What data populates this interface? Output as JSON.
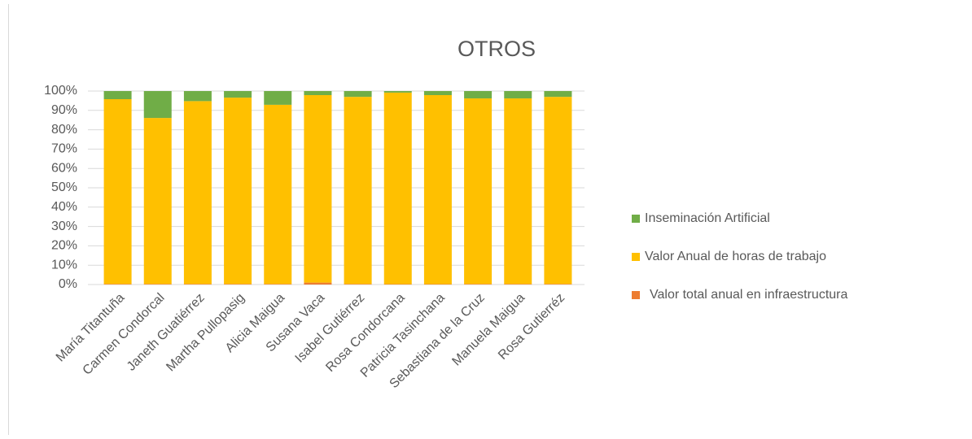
{
  "chart_data": {
    "type": "stacked_bar_percent",
    "title": "OTROS",
    "categories": [
      "María Titantuña",
      "Carmen Condorcal",
      "Janeth Guatiérrez",
      "Martha Pullopasig",
      "Alicia Maigua",
      "Susana Vaca",
      "Isabel Gutiérrez",
      "Rosa Condorcana",
      "Patricia Tasinchana",
      "Sebastiana de la Cruz",
      "Manuela Maigua",
      "Rosa Gutierréz"
    ],
    "series": [
      {
        "name": "Valor total anual en infraestructura",
        "color": "#ed7d31",
        "values": [
          0.3,
          0.3,
          0.3,
          0.3,
          0.3,
          1.0,
          0.3,
          0.2,
          0.2,
          0.3,
          0.3,
          0.3
        ]
      },
      {
        "name": "Valor Anual de horas de trabajo",
        "color": "#ffc000",
        "values": [
          95.5,
          85.8,
          94.5,
          96.3,
          92.6,
          96.9,
          96.7,
          99.0,
          97.7,
          95.9,
          95.9,
          96.7
        ]
      },
      {
        "name": "Inseminación Artificial",
        "color": "#70ad47",
        "values": [
          4.2,
          13.9,
          5.2,
          3.4,
          7.1,
          2.1,
          3.0,
          0.8,
          2.1,
          3.8,
          3.8,
          3.0
        ]
      }
    ],
    "ylim": [
      0,
      100
    ],
    "yticks": [
      {
        "value": 0,
        "label": "0%"
      },
      {
        "value": 10,
        "label": "10%"
      },
      {
        "value": 20,
        "label": "20%"
      },
      {
        "value": 30,
        "label": "30%"
      },
      {
        "value": 40,
        "label": "40%"
      },
      {
        "value": 50,
        "label": "50%"
      },
      {
        "value": 60,
        "label": "60%"
      },
      {
        "value": 70,
        "label": "70%"
      },
      {
        "value": 80,
        "label": "80%"
      },
      {
        "value": 90,
        "label": "90%"
      },
      {
        "value": 100,
        "label": "100%"
      }
    ],
    "grid": true,
    "legend": "right"
  }
}
